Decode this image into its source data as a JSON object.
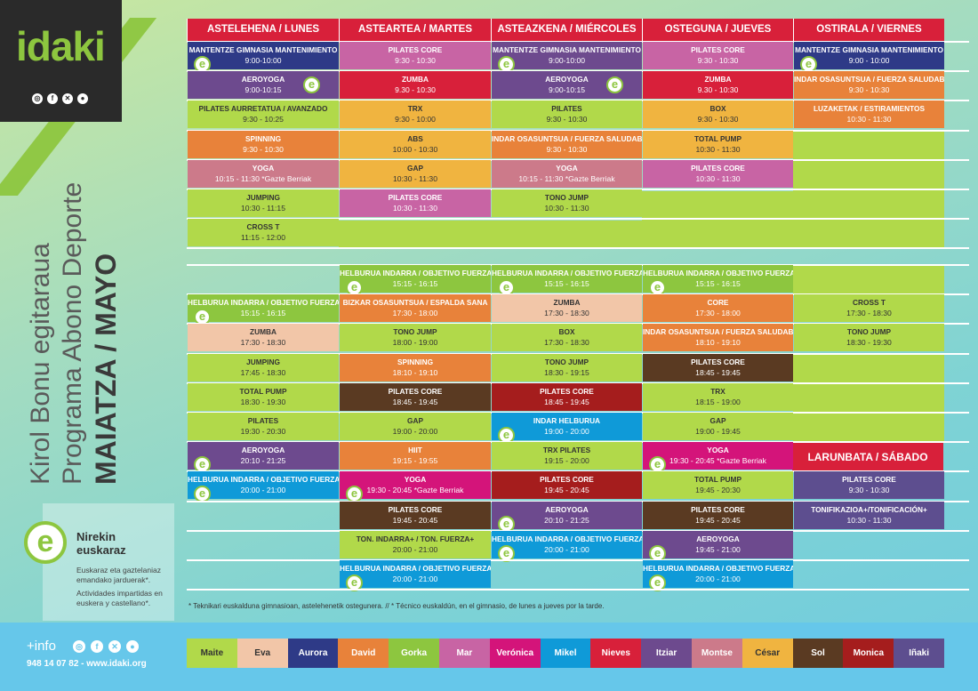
{
  "brand": {
    "logo": "idaki",
    "social_icons": [
      "instagram-icon",
      "facebook-icon",
      "x-icon",
      "web-icon"
    ]
  },
  "side": {
    "line1": "Kirol Bonu egitaraua",
    "line2": "Programa Abono Deporte",
    "line3": "MAIATZA / MAYO"
  },
  "info_box": {
    "e": "e",
    "title1": "Nirekin",
    "title2": "euskaraz",
    "text1": "Euskaraz eta gaztelaniaz emandako jarduerak*.",
    "text2": "Actividades impartidas en euskera y castellano*."
  },
  "footer": {
    "plus_info": "+info",
    "phone_web": "948 14 07 82 - www.idaki.org"
  },
  "days": [
    "ASTELEHENA / LUNES",
    "ASTEARTEA / MARTES",
    "ASTEAZKENA / MIÉRCOLES",
    "OSTEGUNA / JUEVES",
    "OSTIRALA / VIERNES"
  ],
  "saturday": "LARUNBATA / SÁBADO",
  "footnote": "* Teknikari euskalduna gimnasioan, astelehenetik ostegunera. // * Técnico euskaldún, en el gimnasio, de lunes a jueves por la tarde.",
  "colors": {
    "red": "#d8203a",
    "green": "#8dc63f",
    "navy": "#2e3a87",
    "purple": "#6d4a8e",
    "pink": "#c864a4",
    "orange": "#e8823a",
    "yellow": "#f0b440",
    "lime": "#b1d94a",
    "peach": "#f2c6a8",
    "rose": "#cc7a8a",
    "blue": "#0f9ad8",
    "brown": "#5a3a22",
    "darkred": "#a51d1d",
    "violet": "#5d4e8f",
    "magenta": "#d4147a"
  },
  "morning": [
    [
      {
        "t": "MANTENTZE GIMNASIA MANTENIMIENTO",
        "h": "9:00-10:00",
        "c": "#2e3a87",
        "e": true
      },
      {
        "t": "PILATES CORE",
        "h": "9:30 - 10:30",
        "c": "#c864a4"
      },
      {
        "t": "MANTENTZE GIMNASIA MANTENIMIENTO",
        "h": "9:00-10:00",
        "c": "#6d4a8e",
        "e": true
      },
      {
        "t": "PILATES CORE",
        "h": "9:30 - 10:30",
        "c": "#c864a4"
      },
      {
        "t": "MANTENTZE GIMNASIA MANTENIMIENTO",
        "h": "9:00 - 10:00",
        "c": "#2e3a87",
        "e": true
      }
    ],
    [
      {
        "t": "AEROYOGA",
        "h": "9:00-10:15",
        "c": "#6d4a8e",
        "e": true
      },
      {
        "t": "ZUMBA",
        "h": "9.30 - 10:30",
        "c": "#d8203a"
      },
      {
        "t": "AEROYOGA",
        "h": "9:00-10:15",
        "c": "#6d4a8e",
        "e": true
      },
      {
        "t": "ZUMBA",
        "h": "9.30 - 10:30",
        "c": "#d8203a"
      },
      {
        "t": "INDAR OSASUNTSUA / FUERZA SALUDABLE",
        "h": "9:30 - 10:30",
        "c": "#e8823a"
      }
    ],
    [
      {
        "t": "PILATES AURRETATUA / AVANZADO",
        "h": "9:30 - 10:25",
        "c": "#b1d94a",
        "d": true
      },
      {
        "t": "TRX",
        "h": "9:30 - 10:00",
        "c": "#f0b440",
        "d": true
      },
      {
        "t": "PILATES",
        "h": "9:30 - 10:30",
        "c": "#b1d94a",
        "d": true
      },
      {
        "t": "BOX",
        "h": "9:30 - 10:30",
        "c": "#f0b440",
        "d": true
      },
      {
        "t": "LUZAKETAK / ESTIRAMIENTOS",
        "h": "10:30 - 11:30",
        "c": "#e8823a"
      }
    ],
    [
      {
        "t": "SPINNING",
        "h": "9:30 - 10:30",
        "c": "#e8823a"
      },
      {
        "t": "ABS",
        "h": "10:00 - 10:30",
        "c": "#f0b440",
        "d": true
      },
      {
        "t": "INDAR OSASUNTSUA / FUERZA SALUDABLE",
        "h": "9:30 - 10:30",
        "c": "#e8823a"
      },
      {
        "t": "TOTAL PUMP",
        "h": "10:30 - 11:30",
        "c": "#f0b440",
        "d": true
      },
      null
    ],
    [
      {
        "t": "YOGA",
        "h": "10:15 - 11:30 *Gazte Berriak",
        "c": "#cc7a8a"
      },
      {
        "t": "GAP",
        "h": "10:30 - 11:30",
        "c": "#f0b440",
        "d": true
      },
      {
        "t": "YOGA",
        "h": "10:15 - 11:30 *Gazte Berriak",
        "c": "#cc7a8a"
      },
      {
        "t": "PILATES CORE",
        "h": "10:30 - 11:30",
        "c": "#c864a4"
      },
      null
    ],
    [
      {
        "t": "JUMPING",
        "h": "10:30 - 11:15",
        "c": "#b1d94a",
        "d": true
      },
      {
        "t": "PILATES CORE",
        "h": "10:30 - 11:30",
        "c": "#c864a4"
      },
      {
        "t": "TONO JUMP",
        "h": "10:30 - 11:30",
        "c": "#b1d94a",
        "d": true
      },
      null,
      null
    ],
    [
      {
        "t": "CROSS T",
        "h": "11:15 - 12:00",
        "c": "#b1d94a",
        "d": true
      },
      null,
      null,
      null,
      null
    ]
  ],
  "afternoon": [
    [
      null,
      {
        "t": "HELBURUA INDARRA / OBJETIVO FUERZA",
        "h": "15:15 - 16:15",
        "c": "#8dc63f",
        "e": true
      },
      {
        "t": "HELBURUA INDARRA / OBJETIVO FUERZA",
        "h": "15:15 - 16:15",
        "c": "#8dc63f",
        "e": true
      },
      {
        "t": "HELBURUA INDARRA / OBJETIVO FUERZA",
        "h": "15:15 - 16:15",
        "c": "#8dc63f",
        "e": true
      },
      null
    ],
    [
      {
        "t": "HELBURUA INDARRA / OBJETIVO FUERZA",
        "h": "15:15 - 16:15",
        "c": "#8dc63f",
        "e": true
      },
      {
        "t": "BIZKAR OSASUNTSUA / ESPALDA SANA",
        "h": "17:30 - 18:00",
        "c": "#e8823a"
      },
      {
        "t": "ZUMBA",
        "h": "17:30 - 18:30",
        "c": "#f2c6a8",
        "d": true
      },
      {
        "t": "CORE",
        "h": "17:30 - 18:00",
        "c": "#e8823a"
      },
      {
        "t": "CROSS T",
        "h": "17:30 - 18:30",
        "c": "#b1d94a",
        "d": true
      }
    ],
    [
      {
        "t": "ZUMBA",
        "h": "17:30 - 18:30",
        "c": "#f2c6a8",
        "d": true
      },
      {
        "t": "TONO JUMP",
        "h": "18:00 - 19:00",
        "c": "#b1d94a",
        "d": true
      },
      {
        "t": "BOX",
        "h": "17:30 - 18:30",
        "c": "#b1d94a",
        "d": true
      },
      {
        "t": "INDAR OSASUNTSUA / FUERZA SALUDABLE",
        "h": "18:10 - 19:10",
        "c": "#e8823a"
      },
      {
        "t": "TONO JUMP",
        "h": "18:30 - 19:30",
        "c": "#b1d94a",
        "d": true
      }
    ],
    [
      {
        "t": "JUMPING",
        "h": "17:45 - 18:30",
        "c": "#b1d94a",
        "d": true
      },
      {
        "t": "SPINNING",
        "h": "18:10 - 19:10",
        "c": "#e8823a"
      },
      {
        "t": "TONO JUMP",
        "h": "18:30 - 19:15",
        "c": "#b1d94a",
        "d": true
      },
      {
        "t": "PILATES CORE",
        "h": "18:45 - 19:45",
        "c": "#5a3a22"
      },
      null
    ],
    [
      {
        "t": "TOTAL PUMP",
        "h": "18:30 - 19:30",
        "c": "#b1d94a",
        "d": true
      },
      {
        "t": "PILATES CORE",
        "h": "18:45 - 19:45",
        "c": "#5a3a22"
      },
      {
        "t": "PILATES CORE",
        "h": "18:45 - 19:45",
        "c": "#a51d1d"
      },
      {
        "t": "TRX",
        "h": "18:15 - 19:00",
        "c": "#b1d94a",
        "d": true
      },
      null
    ],
    [
      {
        "t": "PILATES",
        "h": "19:30 - 20:30",
        "c": "#b1d94a",
        "d": true
      },
      {
        "t": "GAP",
        "h": "19:00 - 20:00",
        "c": "#b1d94a",
        "d": true
      },
      {
        "t": "INDAR HELBURUA",
        "h": "19:00 - 20:00",
        "c": "#0f9ad8",
        "e": true
      },
      {
        "t": "GAP",
        "h": "19:00 - 19:45",
        "c": "#b1d94a",
        "d": true
      },
      null
    ],
    [
      {
        "t": "AEROYOGA",
        "h": "20:10 - 21:25",
        "c": "#6d4a8e",
        "e": true
      },
      {
        "t": "HIIT",
        "h": "19:15 - 19:55",
        "c": "#e8823a"
      },
      {
        "t": "TRX PILATES",
        "h": "19:15 - 20:00",
        "c": "#b1d94a",
        "d": true
      },
      {
        "t": "YOGA",
        "h": "19:30 - 20:45 *Gazte Berriak",
        "c": "#d4147a",
        "e": true
      },
      null
    ],
    [
      {
        "t": "HELBURUA INDARRA / OBJETIVO FUERZA",
        "h": "20:00 - 21:00",
        "c": "#0f9ad8",
        "e": true
      },
      {
        "t": "YOGA",
        "h": "19:30 - 20:45 *Gazte Berriak",
        "c": "#d4147a",
        "e": true
      },
      {
        "t": "PILATES CORE",
        "h": "19:45 - 20:45",
        "c": "#a51d1d"
      },
      {
        "t": "TOTAL PUMP",
        "h": "19:45 - 20:30",
        "c": "#b1d94a",
        "d": true
      },
      {
        "t": "PILATES CORE",
        "h": "9:30 - 10:30",
        "c": "#5d4e8f"
      }
    ],
    [
      null,
      {
        "t": "PILATES CORE",
        "h": "19:45 - 20:45",
        "c": "#5a3a22"
      },
      {
        "t": "AEROYOGA",
        "h": "20:10 - 21:25",
        "c": "#6d4a8e",
        "e": true
      },
      {
        "t": "PILATES CORE",
        "h": "19:45 - 20:45",
        "c": "#5a3a22"
      },
      {
        "t": "TONIFIKAZIOA+/TONIFICACIÓN+",
        "h": "10:30 - 11:30",
        "c": "#5d4e8f"
      }
    ],
    [
      null,
      {
        "t": "TON. INDARRA+ / TON. FUERZA+",
        "h": "20:00 - 21:00",
        "c": "#b1d94a",
        "d": true
      },
      {
        "t": "HELBURUA INDARRA / OBJETIVO FUERZA",
        "h": "20:00 - 21:00",
        "c": "#0f9ad8",
        "e": true
      },
      {
        "t": "AEROYOGA",
        "h": "19:45 - 21:00",
        "c": "#6d4a8e",
        "e": true
      },
      null
    ],
    [
      null,
      {
        "t": "HELBURUA INDARRA / OBJETIVO FUERZA",
        "h": "20:00 - 21:00",
        "c": "#0f9ad8",
        "e": true
      },
      null,
      {
        "t": "HELBURUA INDARRA / OBJETIVO FUERZA",
        "h": "20:00 - 21:00",
        "c": "#0f9ad8",
        "e": true
      },
      null
    ]
  ],
  "trainers": [
    {
      "n": "Maite",
      "c": "#b1d94a",
      "d": true
    },
    {
      "n": "Eva",
      "c": "#f2c6a8",
      "d": true
    },
    {
      "n": "Aurora",
      "c": "#2e3a87"
    },
    {
      "n": "David",
      "c": "#e8823a"
    },
    {
      "n": "Gorka",
      "c": "#8dc63f"
    },
    {
      "n": "Mar",
      "c": "#c864a4"
    },
    {
      "n": "Verónica",
      "c": "#d4147a"
    },
    {
      "n": "Mikel",
      "c": "#0f9ad8"
    },
    {
      "n": "Nieves",
      "c": "#d8203a"
    },
    {
      "n": "Itziar",
      "c": "#6d4a8e"
    },
    {
      "n": "Montse",
      "c": "#cc7a8a"
    },
    {
      "n": "César",
      "c": "#f0b440",
      "d": true
    },
    {
      "n": "Sol",
      "c": "#5a3a22"
    },
    {
      "n": "Monica",
      "c": "#a51d1d"
    },
    {
      "n": "Iñaki",
      "c": "#5d4e8f"
    }
  ]
}
